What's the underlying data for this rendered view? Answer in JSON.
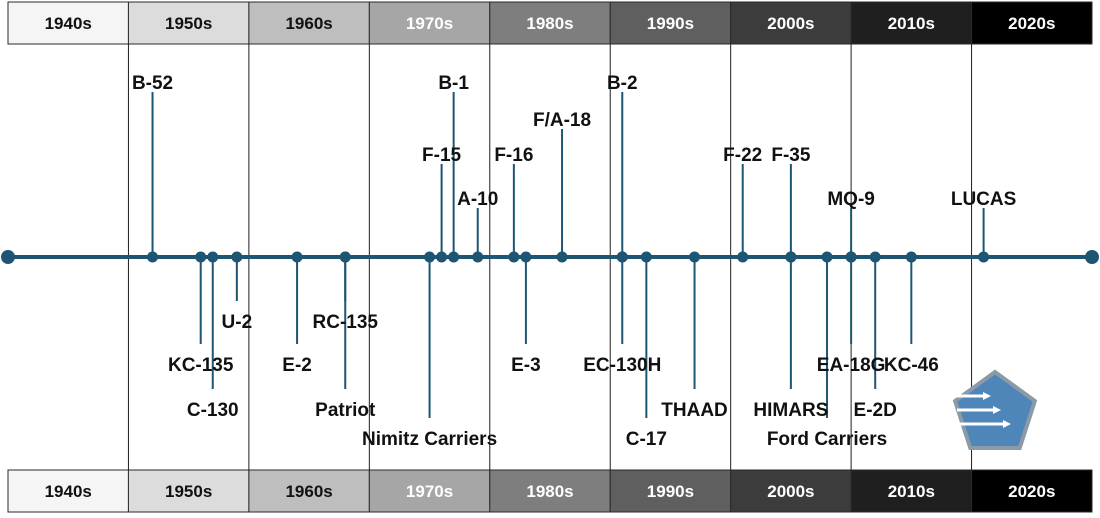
{
  "decades": [
    {
      "label": "1940s",
      "fill": "#f5f5f5",
      "text": "#111111"
    },
    {
      "label": "1950s",
      "fill": "#dcdcdc",
      "text": "#111111"
    },
    {
      "label": "1960s",
      "fill": "#bebebe",
      "text": "#111111"
    },
    {
      "label": "1970s",
      "fill": "#a6a6a6",
      "text": "#ffffff"
    },
    {
      "label": "1980s",
      "fill": "#7e7e7e",
      "text": "#ffffff"
    },
    {
      "label": "1990s",
      "fill": "#5f5f5f",
      "text": "#ffffff"
    },
    {
      "label": "2000s",
      "fill": "#3c3c3c",
      "text": "#ffffff"
    },
    {
      "label": "2010s",
      "fill": "#1f1f1f",
      "text": "#ffffff"
    },
    {
      "label": "2020s",
      "fill": "#000000",
      "text": "#ffffff"
    }
  ],
  "colors": {
    "timeline": "#1d5573",
    "divider": "#1e1e1e",
    "logo_fill": "#4f86b9",
    "logo_stroke": "#8a9aa6"
  },
  "events": [
    {
      "name": "B-52",
      "year": 1952,
      "side": "above",
      "level": 1
    },
    {
      "name": "KC-135",
      "year": 1956,
      "side": "below",
      "level": 2
    },
    {
      "name": "C-130",
      "year": 1957,
      "side": "below",
      "level": 3
    },
    {
      "name": "U-2",
      "year": 1959,
      "side": "below",
      "level": 1
    },
    {
      "name": "E-2",
      "year": 1964,
      "side": "below",
      "level": 2
    },
    {
      "name": "RC-135",
      "year": 1968,
      "side": "below",
      "level": 1
    },
    {
      "name": "Patriot",
      "year": 1968,
      "side": "below",
      "level": 3
    },
    {
      "name": "Nimitz Carriers",
      "year": 1975,
      "side": "below",
      "level": 4
    },
    {
      "name": "F-15",
      "year": 1976,
      "side": "above",
      "level": 3
    },
    {
      "name": "B-1",
      "year": 1977,
      "side": "above",
      "level": 1
    },
    {
      "name": "A-10",
      "year": 1979,
      "side": "above",
      "level": 4
    },
    {
      "name": "F-16",
      "year": 1982,
      "side": "above",
      "level": 3
    },
    {
      "name": "E-3",
      "year": 1983,
      "side": "below",
      "level": 2
    },
    {
      "name": "F/A-18",
      "year": 1986,
      "side": "above",
      "level": 2
    },
    {
      "name": "B-2",
      "year": 1991,
      "side": "above",
      "level": 1
    },
    {
      "name": "EC-130H",
      "year": 1991,
      "side": "below",
      "level": 2
    },
    {
      "name": "C-17",
      "year": 1993,
      "side": "below",
      "level": 4
    },
    {
      "name": "THAAD",
      "year": 1997,
      "side": "below",
      "level": 3
    },
    {
      "name": "F-22",
      "year": 2001,
      "side": "above",
      "level": 3
    },
    {
      "name": "F-35",
      "year": 2005,
      "side": "above",
      "level": 3
    },
    {
      "name": "HIMARS",
      "year": 2005,
      "side": "below",
      "level": 3
    },
    {
      "name": "Ford Carriers",
      "year": 2008,
      "side": "below",
      "level": 4
    },
    {
      "name": "MQ-9",
      "year": 2010,
      "side": "above",
      "level": 4
    },
    {
      "name": "EA-18G",
      "year": 2010,
      "side": "below",
      "level": 2
    },
    {
      "name": "E-2D",
      "year": 2012,
      "side": "below",
      "level": 3
    },
    {
      "name": "KC-46",
      "year": 2015,
      "side": "below",
      "level": 2
    },
    {
      "name": "LUCAS",
      "year": 2021,
      "side": "above",
      "level": 4
    }
  ]
}
